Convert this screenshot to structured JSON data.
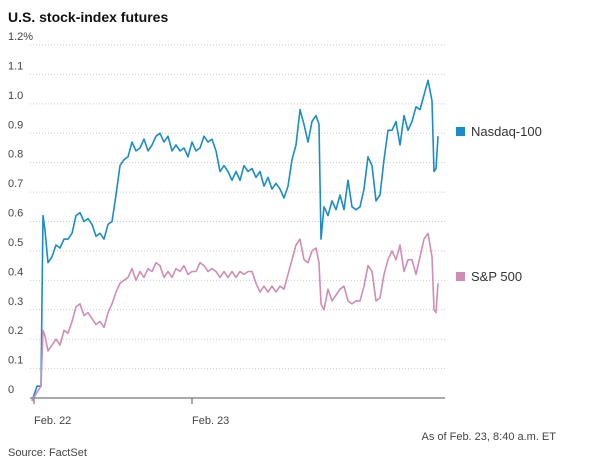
{
  "chart_data": {
    "type": "line",
    "title": "U.S. stock-index futures",
    "note": "As of Feb. 23, 8:40 a.m. ET",
    "source": "Source: FactSet",
    "x": [
      2,
      7,
      11,
      13,
      15,
      18,
      22,
      26,
      30,
      34,
      38,
      42,
      46,
      50,
      54,
      58,
      62,
      66,
      70,
      74,
      78,
      82,
      86,
      90,
      94,
      98,
      102,
      106,
      110,
      114,
      118,
      122,
      126,
      130,
      134,
      138,
      142,
      146,
      150,
      154,
      158,
      162,
      166,
      170,
      174,
      178,
      182,
      186,
      190,
      194,
      198,
      202,
      206,
      210,
      214,
      218,
      222,
      226,
      230,
      234,
      238,
      242,
      246,
      250,
      254,
      258,
      262,
      266,
      270,
      274,
      278,
      282,
      286,
      289,
      291,
      294,
      298,
      302,
      306,
      310,
      314,
      318,
      322,
      326,
      330,
      334,
      338,
      342,
      346,
      350,
      354,
      358,
      362,
      366,
      370,
      374,
      378,
      382,
      386,
      390,
      394,
      398,
      402,
      404,
      406,
      408
    ],
    "xlim": [
      0,
      410
    ],
    "xticks": [
      {
        "value": 4,
        "label": "Feb. 22"
      },
      {
        "value": 162,
        "label": "Feb. 23"
      }
    ],
    "ylim": [
      0,
      1.2
    ],
    "yticks": [
      0,
      0.1,
      0.2,
      0.3,
      0.4,
      0.5,
      0.6,
      0.7,
      0.8,
      0.9,
      {
        "value": 1,
        "label": "1.0"
      },
      1.1,
      {
        "value": 1.2,
        "label": "1.2%"
      }
    ],
    "grid": true,
    "series": [
      {
        "name": "Nasdaq-100",
        "color": "#1a8cc8",
        "values": [
          -0.01,
          0.04,
          0.04,
          0.62,
          0.57,
          0.46,
          0.48,
          0.52,
          0.51,
          0.54,
          0.54,
          0.56,
          0.62,
          0.63,
          0.6,
          0.61,
          0.59,
          0.55,
          0.56,
          0.54,
          0.59,
          0.6,
          0.69,
          0.79,
          0.81,
          0.82,
          0.87,
          0.84,
          0.85,
          0.88,
          0.84,
          0.86,
          0.89,
          0.9,
          0.87,
          0.89,
          0.84,
          0.86,
          0.84,
          0.85,
          0.82,
          0.87,
          0.84,
          0.85,
          0.89,
          0.87,
          0.88,
          0.84,
          0.77,
          0.79,
          0.77,
          0.74,
          0.77,
          0.74,
          0.79,
          0.77,
          0.78,
          0.75,
          0.77,
          0.72,
          0.75,
          0.71,
          0.73,
          0.71,
          0.68,
          0.72,
          0.81,
          0.86,
          0.98,
          0.93,
          0.87,
          0.94,
          0.96,
          0.93,
          0.54,
          0.65,
          0.62,
          0.67,
          0.64,
          0.69,
          0.64,
          0.74,
          0.65,
          0.64,
          0.65,
          0.71,
          0.82,
          0.79,
          0.67,
          0.69,
          0.81,
          0.91,
          0.91,
          0.94,
          0.86,
          0.96,
          0.91,
          0.94,
          0.99,
          0.98,
          1.03,
          1.08,
          1.01,
          0.77,
          0.78,
          0.89
        ]
      },
      {
        "name": "S&P 500",
        "color": "#d08db3",
        "values": [
          -0.01,
          0.02,
          0.04,
          0.23,
          0.21,
          0.16,
          0.18,
          0.2,
          0.18,
          0.23,
          0.22,
          0.26,
          0.31,
          0.32,
          0.28,
          0.29,
          0.27,
          0.25,
          0.26,
          0.24,
          0.29,
          0.32,
          0.36,
          0.39,
          0.4,
          0.41,
          0.44,
          0.4,
          0.43,
          0.41,
          0.44,
          0.43,
          0.46,
          0.45,
          0.41,
          0.43,
          0.41,
          0.44,
          0.43,
          0.45,
          0.42,
          0.43,
          0.43,
          0.46,
          0.45,
          0.43,
          0.44,
          0.43,
          0.41,
          0.43,
          0.41,
          0.43,
          0.41,
          0.43,
          0.42,
          0.43,
          0.43,
          0.39,
          0.36,
          0.38,
          0.36,
          0.38,
          0.36,
          0.38,
          0.37,
          0.42,
          0.47,
          0.52,
          0.54,
          0.47,
          0.46,
          0.5,
          0.51,
          0.46,
          0.32,
          0.3,
          0.37,
          0.33,
          0.35,
          0.37,
          0.38,
          0.33,
          0.32,
          0.33,
          0.33,
          0.38,
          0.45,
          0.43,
          0.33,
          0.34,
          0.42,
          0.47,
          0.5,
          0.47,
          0.52,
          0.43,
          0.47,
          0.47,
          0.42,
          0.48,
          0.54,
          0.56,
          0.48,
          0.3,
          0.29,
          0.39
        ]
      }
    ]
  }
}
